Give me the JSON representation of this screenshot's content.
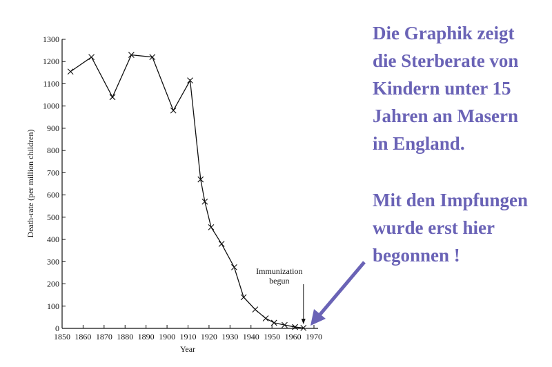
{
  "chart_data": {
    "type": "line",
    "x_label": "Year",
    "y_label": "Death-rate (per million children)",
    "x": [
      1854,
      1864,
      1874,
      1883,
      1893,
      1903,
      1911,
      1916,
      1918,
      1921,
      1926,
      1932,
      1936.5,
      1942,
      1947,
      1951,
      1956,
      1961,
      1965
    ],
    "values": [
      1155,
      1220,
      1040,
      1230,
      1220,
      980,
      1115,
      670,
      570,
      455,
      380,
      275,
      140,
      85,
      45,
      25,
      15,
      6,
      2
    ],
    "color": "#111111",
    "xlim": [
      1850,
      1970
    ],
    "xticks": [
      1850,
      1860,
      1870,
      1880,
      1890,
      1900,
      1910,
      1920,
      1930,
      1940,
      1950,
      1960,
      1970
    ],
    "ylim": [
      0,
      1300
    ],
    "yticks": [
      0,
      100,
      200,
      300,
      400,
      500,
      600,
      700,
      800,
      900,
      1000,
      1100,
      1200,
      1300
    ],
    "annotation": {
      "lines": [
        "Immunization",
        "begun"
      ],
      "x": 1965
    },
    "side_text": [
      [
        "Die Graphik zeigt",
        "die Sterberate von",
        "Kindern unter 15",
        "Jahren an Masern",
        "in England."
      ],
      [
        "Mit den Impfungen",
        "wurde erst hier",
        "begonnen !"
      ]
    ],
    "side_color": "#6a63b6"
  }
}
